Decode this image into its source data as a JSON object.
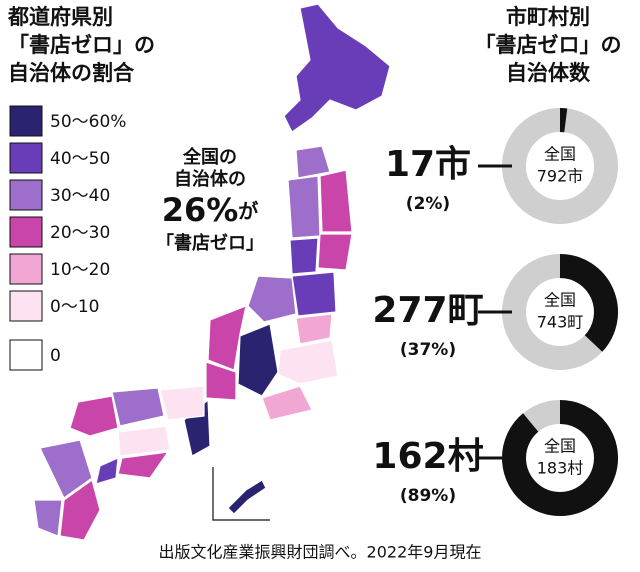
{
  "left_title": [
    "都道府県別",
    "「書店ゼロ」の",
    "自治体の割合"
  ],
  "legend": [
    {
      "label": "50〜60%",
      "color": "#2a2470"
    },
    {
      "label": "40〜50",
      "color": "#6a3db8"
    },
    {
      "label": "30〜40",
      "color": "#9d6fca"
    },
    {
      "label": "20〜30",
      "color": "#c945a9"
    },
    {
      "label": "10〜20",
      "color": "#f2a6d4"
    },
    {
      "label": "0〜10",
      "color": "#fde3f2"
    },
    {
      "label": "0",
      "color": "#ffffff"
    }
  ],
  "callout": {
    "lines": [
      "全国の",
      "自治体の"
    ],
    "highlight": "26%",
    "suffix": "が",
    "last": "「書店ゼロ」"
  },
  "right_title": [
    "市町村別",
    "「書店ゼロ」の",
    "自治体数"
  ],
  "donuts": [
    {
      "count": "17市",
      "share": 2,
      "share_label": "(2%)",
      "total": [
        "全国",
        "792市"
      ]
    },
    {
      "count": "277町",
      "share": 37,
      "share_label": "(37%)",
      "total": [
        "全国",
        "743町"
      ]
    },
    {
      "count": "162村",
      "share": 89,
      "share_label": "(89%)",
      "total": [
        "全国",
        "183村"
      ]
    }
  ],
  "source": "出版文化産業振興財団調べ。2022年9月現在"
}
